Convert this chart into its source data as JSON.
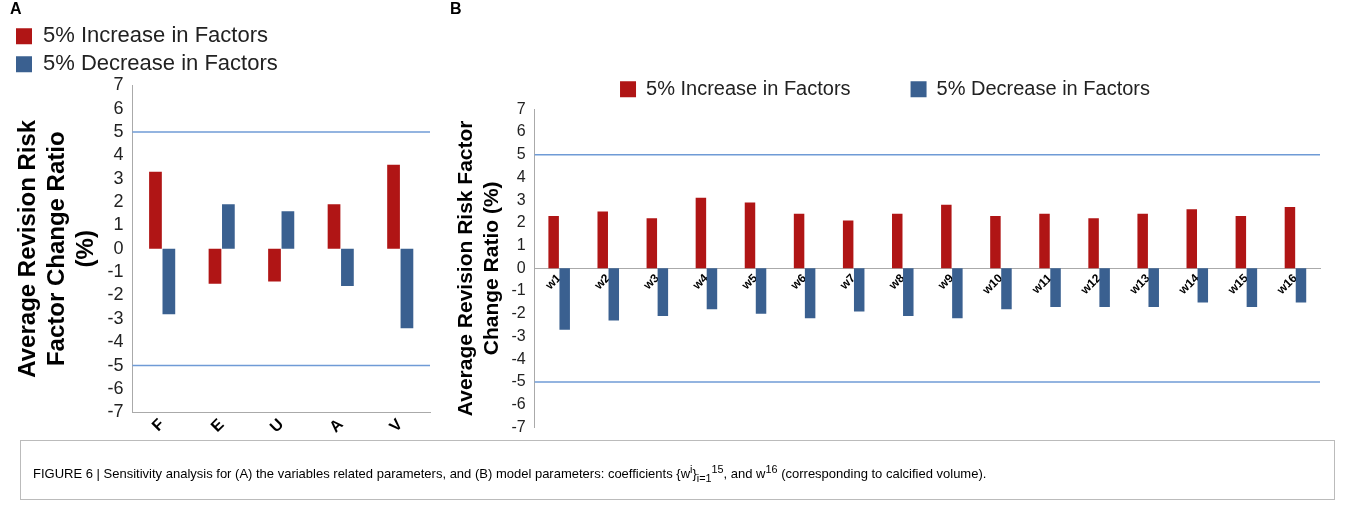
{
  "chart_data": [
    {
      "type": "bar",
      "title": "A",
      "ylabel": "Average Revision Risk Factor Change Ratio (%)",
      "categories": [
        "F",
        "E",
        "U",
        "A",
        "V"
      ],
      "series": [
        {
          "name": "5% Increase in Factors",
          "color": "#b01515",
          "values": [
            3.3,
            -1.5,
            -1.4,
            1.9,
            3.6
          ]
        },
        {
          "name": "5% Decrease in Factors",
          "color": "#3a6090",
          "values": [
            -2.8,
            1.9,
            1.6,
            -1.6,
            -3.4
          ]
        }
      ],
      "ylim": [
        -7,
        7
      ],
      "yticks": [
        -7,
        -6,
        -5,
        -4,
        -3,
        -2,
        -1,
        0,
        1,
        2,
        3,
        4,
        5,
        6,
        7
      ],
      "grid": false,
      "legend": "top left",
      "ref_lines": [
        {
          "axis": "y",
          "value": 5,
          "color": "#6f9bd6"
        },
        {
          "axis": "y",
          "value": -5,
          "color": "#6f9bd6"
        }
      ]
    },
    {
      "type": "bar",
      "title": "B",
      "ylabel": "Average Revision Risk Factor Change Ratio (%)",
      "categories": [
        "w1",
        "w2",
        "w3",
        "w4",
        "w5",
        "w6",
        "w7",
        "w8",
        "w9",
        "w10",
        "w11",
        "w12",
        "w13",
        "w14",
        "w15",
        "w16"
      ],
      "series": [
        {
          "name": "5% Increase in Factors",
          "color": "#b01515",
          "values": [
            2.3,
            2.5,
            2.2,
            3.1,
            2.9,
            2.4,
            2.1,
            2.4,
            2.8,
            2.3,
            2.4,
            2.2,
            2.4,
            2.6,
            2.3,
            2.7
          ]
        },
        {
          "name": "5% Decrease in Factors",
          "color": "#3a6090",
          "values": [
            -2.7,
            -2.3,
            -2.1,
            -1.8,
            -2.0,
            -2.2,
            -1.9,
            -2.1,
            -2.2,
            -1.8,
            -1.7,
            -1.7,
            -1.7,
            -1.5,
            -1.7,
            -1.5
          ]
        }
      ],
      "ylim": [
        -7,
        7
      ],
      "yticks": [
        -7,
        -6,
        -5,
        -4,
        -3,
        -2,
        -1,
        0,
        1,
        2,
        3,
        4,
        5,
        6,
        7
      ],
      "grid": false,
      "legend": "top",
      "ref_lines": [
        {
          "axis": "y",
          "value": 5,
          "color": "#6f9bd6"
        },
        {
          "axis": "y",
          "value": -5,
          "color": "#6f9bd6"
        }
      ],
      "annotations": [
        "FIGURE 6 | Sensitivity analysis for (A) the variables related parameters, and (B) model parameters: coefficients {w$^{i}$}$_{i=1}$$^{15}$, and w$^{16}$ (corresponding to calcified volume)."
      ]
    }
  ]
}
